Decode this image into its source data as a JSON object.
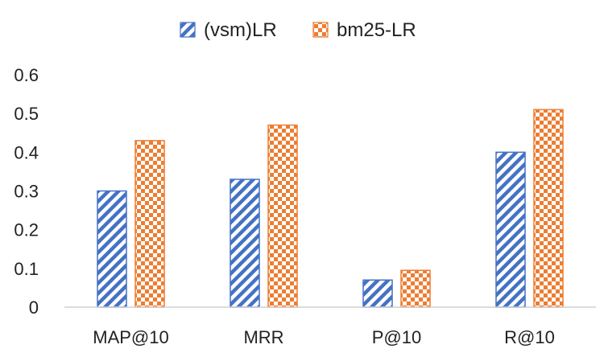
{
  "chart_data": {
    "type": "bar",
    "categories": [
      "MAP@10",
      "MRR",
      "P@10",
      "R@10"
    ],
    "series": [
      {
        "name": "(vsm)LR",
        "values": [
          0.3,
          0.33,
          0.07,
          0.4
        ],
        "color": "#4472C4",
        "pattern": "diagonal-stripes"
      },
      {
        "name": "bm25-LR",
        "values": [
          0.43,
          0.47,
          0.095,
          0.51
        ],
        "color": "#ED7D31",
        "pattern": "checkerboard"
      }
    ],
    "yticks": [
      "0",
      "0.1",
      "0.2",
      "0.3",
      "0.4",
      "0.5",
      "0.6"
    ],
    "ylim": [
      0,
      0.6
    ],
    "grid": false,
    "legend": "top-center",
    "title": "",
    "xlabel": "",
    "ylabel": ""
  }
}
